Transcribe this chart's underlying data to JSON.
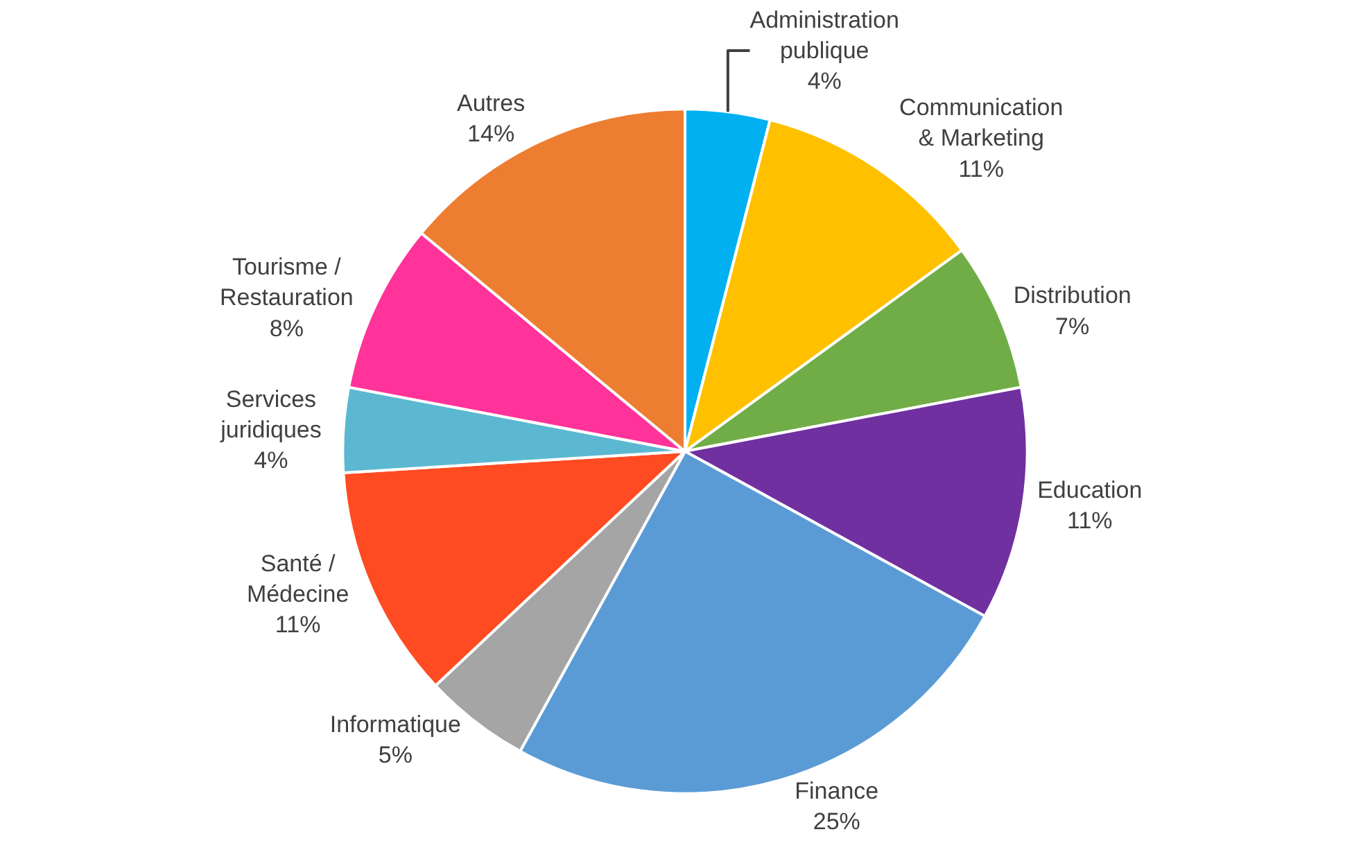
{
  "chart_data": {
    "type": "pie",
    "categories": [
      "Administration publique",
      "Communication & Marketing",
      "Distribution",
      "Education",
      "Finance",
      "Informatique",
      "Santé / Médecine",
      "Services juridiques",
      "Tourisme / Restauration",
      "Autres"
    ],
    "values": [
      4,
      11,
      7,
      11,
      25,
      5,
      11,
      4,
      8,
      14
    ],
    "value_labels": [
      "4%",
      "11%",
      "7%",
      "11%",
      "25%",
      "5%",
      "11%",
      "4%",
      "8%",
      "14%"
    ],
    "colors": [
      "#00b0f0",
      "#ffc000",
      "#70ad47",
      "#7030a0",
      "#5b9bd5",
      "#a5a5a5",
      "#ff4b21",
      "#5bb8d0",
      "#ff3399",
      "#ed7d31"
    ],
    "legend": false
  }
}
